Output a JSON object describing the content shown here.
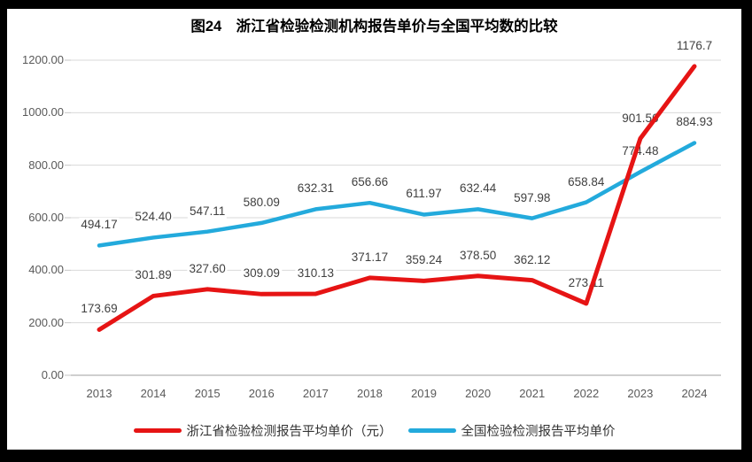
{
  "chart_data": {
    "type": "line",
    "title": "图24　浙江省检验检测机构报告单价与全国平均数的比较",
    "categories": [
      "2013",
      "2014",
      "2015",
      "2016",
      "2017",
      "2018",
      "2019",
      "2020",
      "2021",
      "2022",
      "2023",
      "2024"
    ],
    "series": [
      {
        "name": "浙江省检验检测报告平均单价（元）",
        "color": "#E61414",
        "line_width": 5,
        "values": [
          173.69,
          301.89,
          327.6,
          309.09,
          310.13,
          371.17,
          359.24,
          378.5,
          362.12,
          273.11,
          901.56,
          1176.7
        ],
        "labels": [
          "173.69",
          "301.89",
          "327.60",
          "309.09",
          "310.13",
          "371.17",
          "359.24",
          "378.50",
          "362.12",
          "273.11",
          "901.56",
          "1176.7"
        ]
      },
      {
        "name": "全国检验检测报告平均单价",
        "color": "#23AADC",
        "line_width": 4.5,
        "values": [
          494.17,
          524.4,
          547.11,
          580.09,
          632.31,
          656.66,
          611.97,
          632.44,
          597.98,
          658.84,
          774.48,
          884.93
        ],
        "labels": [
          "494.17",
          "524.40",
          "547.11",
          "580.09",
          "632.31",
          "656.66",
          "611.97",
          "632.44",
          "597.98",
          "658.84",
          "774.48",
          "884.93"
        ]
      }
    ],
    "y_axis": {
      "min": 0,
      "max": 1200,
      "step": 200,
      "tick_labels": [
        "0.00",
        "200.00",
        "400.00",
        "600.00",
        "800.00",
        "1000.00",
        "1200.00"
      ]
    },
    "x_axis": {
      "tick_labels": [
        "2013",
        "2014",
        "2015",
        "2016",
        "2017",
        "2018",
        "2019",
        "2020",
        "2021",
        "2022",
        "2023",
        "2024"
      ]
    },
    "ylim": [
      0,
      1200
    ],
    "grid": true,
    "legend_position": "bottom",
    "style": {
      "gridline_color": "#D9D9D9",
      "axis_line_color": "#BFBFBF",
      "tick_mark_color": "#C6C6C6",
      "axis_text_color": "#595959",
      "data_label_color": "#404040",
      "title_color": "#000000",
      "plot_background": "#FFFFFF",
      "frame_color": "#000000"
    }
  }
}
